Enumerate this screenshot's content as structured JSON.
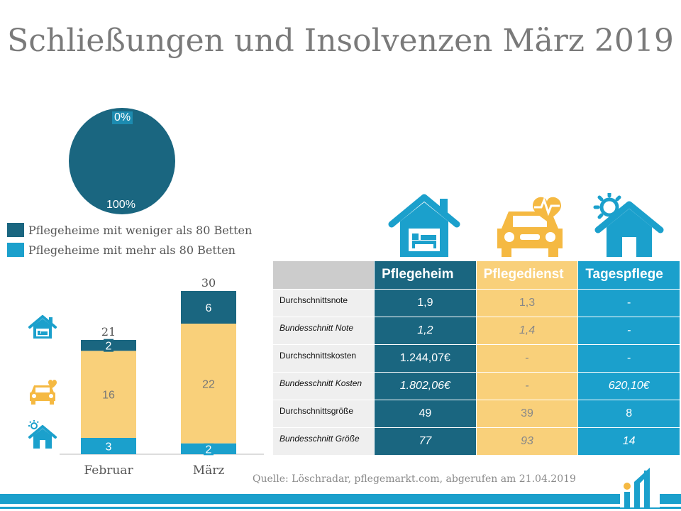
{
  "title": "Schließungen und Insolvenzen März 2019",
  "colors": {
    "dark_teal": "#1a6680",
    "light_blue": "#1ba0cc",
    "yellow": "#f9d07a",
    "gray_header": "#cccccc"
  },
  "pie": {
    "label_top": "0%",
    "label_bottom": "100%"
  },
  "legend": [
    {
      "label": "Pflegeheime mit weniger als 80 Betten",
      "color": "#1a6680"
    },
    {
      "label": "Pflegeheime mit mehr als 80 Betten",
      "color": "#1ba0cc"
    }
  ],
  "icons": {
    "side": [
      "home-bed-icon",
      "car-heart-icon",
      "home-sun-icon"
    ],
    "table": [
      "home-bed-icon",
      "car-heart-icon",
      "home-sun-icon"
    ]
  },
  "table": {
    "headers": [
      "Pflegeheim",
      "Pflegedienst",
      "Tagespflege"
    ],
    "rows": [
      {
        "label": "Durchschnittsnote",
        "italic": false,
        "values": [
          "1,9",
          "1,3",
          "-"
        ]
      },
      {
        "label": "Bundesschnitt Note",
        "italic": true,
        "values": [
          "1,2",
          "1,4",
          "-"
        ]
      },
      {
        "label": "Durchschnittskosten",
        "italic": false,
        "values": [
          "1.244,07€",
          "-",
          "-"
        ]
      },
      {
        "label": "Bundesschnitt Kosten",
        "italic": true,
        "values": [
          "1.802,06€",
          "-",
          "620,10€"
        ]
      },
      {
        "label": "Durchschnittsgröße",
        "italic": false,
        "values": [
          "49",
          "39",
          "8"
        ]
      },
      {
        "label": "Bundesschnitt Größe",
        "italic": true,
        "values": [
          "77",
          "93",
          "14"
        ]
      }
    ]
  },
  "source": "Quelle: Löschradar, pflegemarkt.com, abgerufen am 21.04.2019",
  "chart_data": [
    {
      "type": "pie",
      "values": [
        0,
        100
      ],
      "labels": [
        "0%",
        "100%"
      ],
      "series_names": [
        "Pflegeheime mit mehr als 80 Betten",
        "Pflegeheime mit weniger als 80 Betten"
      ],
      "colors": [
        "#1ba0cc",
        "#1a6680"
      ],
      "legend": "bottom-left"
    },
    {
      "type": "bar",
      "stacked": true,
      "categories": [
        "Februar",
        "März"
      ],
      "series": [
        {
          "values": [
            3,
            2
          ],
          "color": "#1ba0cc"
        },
        {
          "values": [
            16,
            22
          ],
          "color": "#f9d07a"
        },
        {
          "values": [
            2,
            6
          ],
          "color": "#1a6680"
        }
      ],
      "totals": [
        21,
        30
      ],
      "ylim": [
        0,
        30
      ],
      "grid": false
    }
  ]
}
